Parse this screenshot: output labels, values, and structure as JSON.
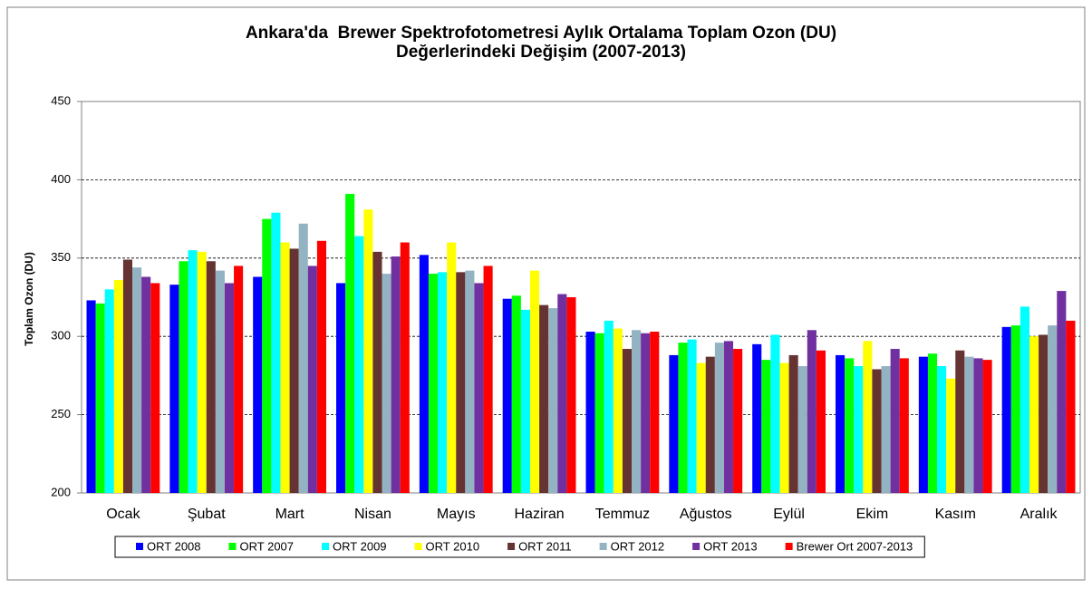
{
  "chart_data": {
    "type": "bar",
    "title": [
      "Ankara'da  Brewer Spektrofotometresi Aylık Ortalama Toplam Ozon (DU)",
      "Değerlerindeki Değişim (2007-2013)"
    ],
    "y_label": "Toplam Ozon (DU)",
    "categories": [
      "Ocak",
      "Şubat",
      "Mart",
      "Nisan",
      "Mayıs",
      "Haziran",
      "Temmuz",
      "Ağustos",
      "Eylül",
      "Ekim",
      "Kasım",
      "Aralık"
    ],
    "series": [
      {
        "name": "ORT 2008",
        "color": "#0000ff",
        "values": [
          323,
          333,
          338,
          334,
          352,
          324,
          303,
          288,
          295,
          288,
          287,
          306
        ]
      },
      {
        "name": "ORT 2007",
        "color": "#00ff00",
        "values": [
          321,
          348,
          375,
          391,
          340,
          326,
          302,
          296,
          285,
          286,
          289,
          307
        ]
      },
      {
        "name": "ORT 2009",
        "color": "#00ffff",
        "values": [
          330,
          355,
          379,
          364,
          341,
          317,
          310,
          298,
          301,
          281,
          281,
          319
        ]
      },
      {
        "name": "ORT 2010",
        "color": "#ffff00",
        "values": [
          336,
          354,
          360,
          381,
          360,
          342,
          305,
          283,
          283,
          297,
          273,
          300
        ]
      },
      {
        "name": "ORT 2011",
        "color": "#663333",
        "values": [
          349,
          348,
          356,
          354,
          341,
          320,
          292,
          287,
          288,
          279,
          291,
          301
        ]
      },
      {
        "name": "ORT 2012",
        "color": "#93b3c3",
        "values": [
          344,
          342,
          372,
          340,
          342,
          318,
          304,
          296,
          281,
          281,
          287,
          307
        ]
      },
      {
        "name": "ORT 2013",
        "color": "#7030a0",
        "values": [
          338,
          334,
          345,
          351,
          334,
          327,
          302,
          297,
          304,
          292,
          286,
          329
        ]
      },
      {
        "name": "Brewer Ort 2007-2013",
        "color": "#ff0000",
        "values": [
          334,
          345,
          361,
          360,
          345,
          325,
          303,
          292,
          291,
          286,
          285,
          310
        ]
      }
    ],
    "ylim": [
      200,
      450
    ],
    "yticks": [
      200,
      250,
      300,
      350,
      400,
      450
    ],
    "grid": true,
    "legend": "bottom"
  }
}
